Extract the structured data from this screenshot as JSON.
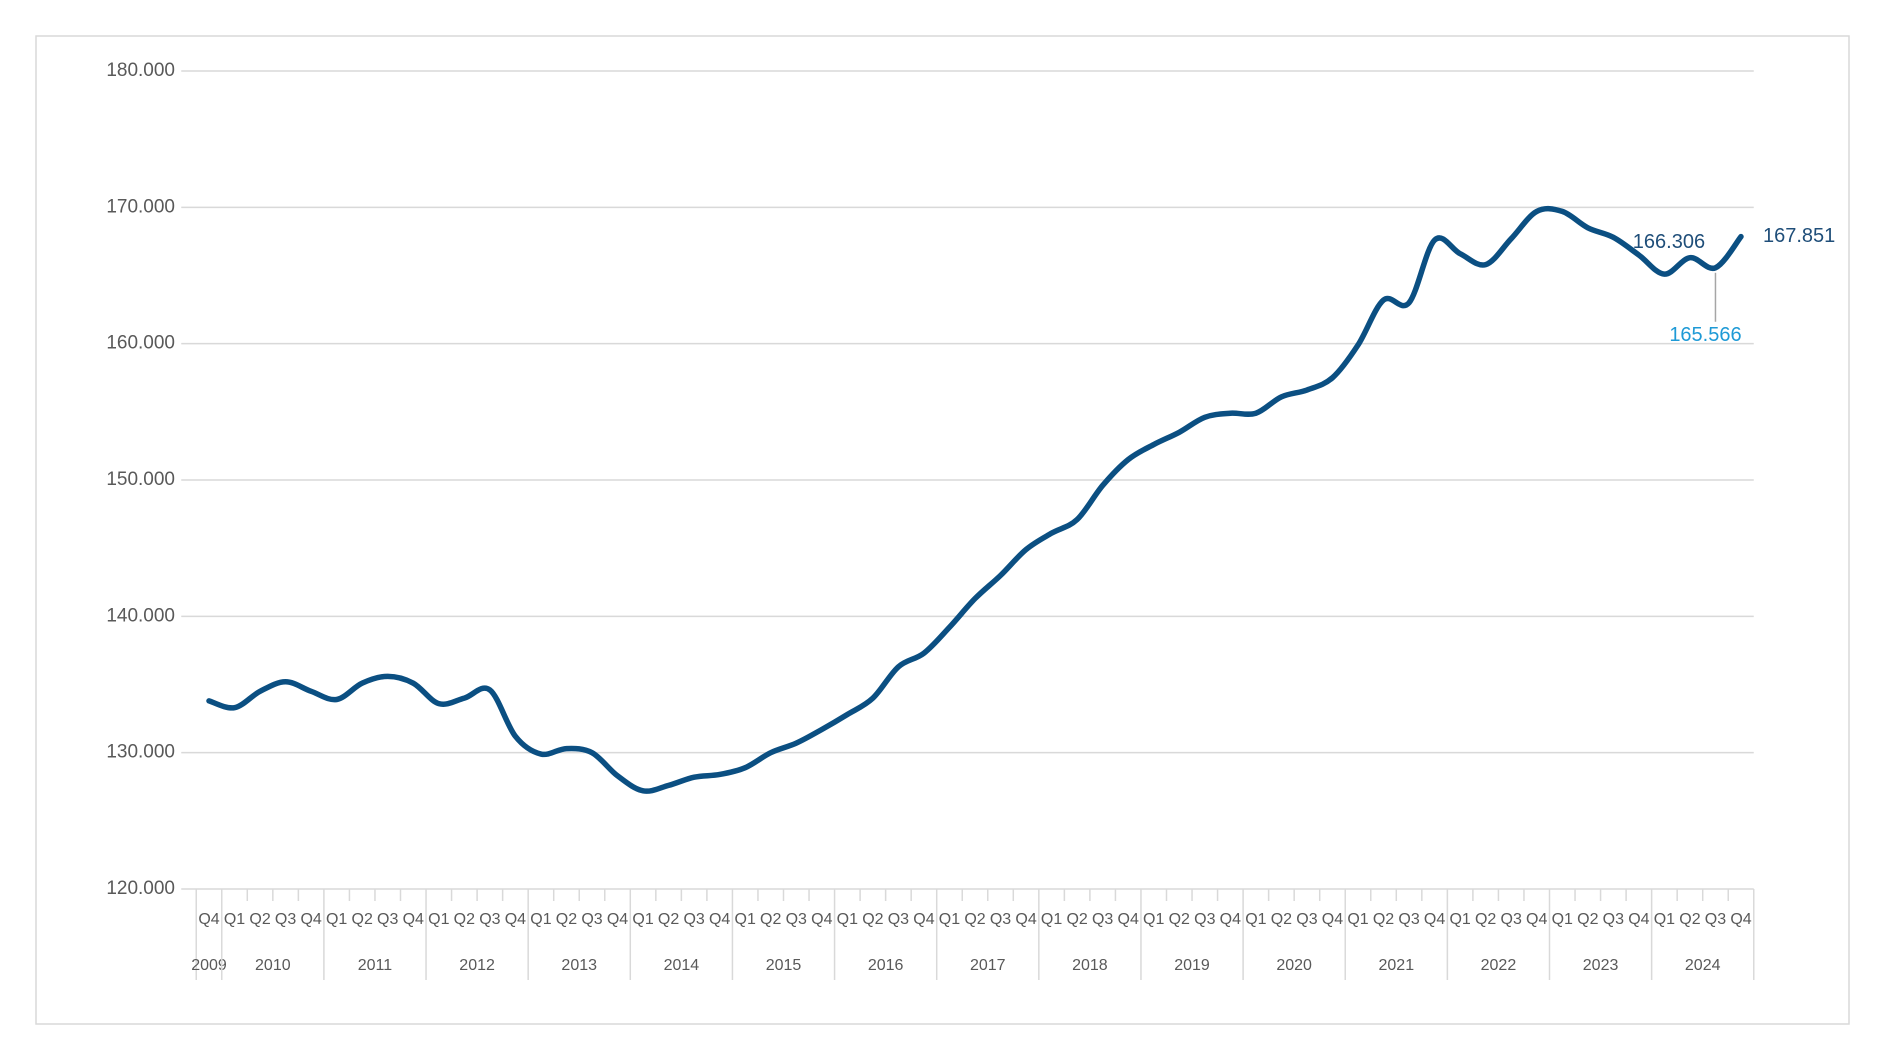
{
  "chart_data": {
    "type": "line",
    "groups": [
      {
        "name": "2009",
        "categories": [
          "Q4"
        ]
      },
      {
        "name": "2010",
        "categories": [
          "Q1",
          "Q2",
          "Q3",
          "Q4"
        ]
      },
      {
        "name": "2011",
        "categories": [
          "Q1",
          "Q2",
          "Q3",
          "Q4"
        ]
      },
      {
        "name": "2012",
        "categories": [
          "Q1",
          "Q2",
          "Q3",
          "Q4"
        ]
      },
      {
        "name": "2013",
        "categories": [
          "Q1",
          "Q2",
          "Q3",
          "Q4"
        ]
      },
      {
        "name": "2014",
        "categories": [
          "Q1",
          "Q2",
          "Q3",
          "Q4"
        ]
      },
      {
        "name": "2015",
        "categories": [
          "Q1",
          "Q2",
          "Q3",
          "Q4"
        ]
      },
      {
        "name": "2016",
        "categories": [
          "Q1",
          "Q2",
          "Q3",
          "Q4"
        ]
      },
      {
        "name": "2017",
        "categories": [
          "Q1",
          "Q2",
          "Q3",
          "Q4"
        ]
      },
      {
        "name": "2018",
        "categories": [
          "Q1",
          "Q2",
          "Q3",
          "Q4"
        ]
      },
      {
        "name": "2019",
        "categories": [
          "Q1",
          "Q2",
          "Q3",
          "Q4"
        ]
      },
      {
        "name": "2020",
        "categories": [
          "Q1",
          "Q2",
          "Q3",
          "Q4"
        ]
      },
      {
        "name": "2021",
        "categories": [
          "Q1",
          "Q2",
          "Q3",
          "Q4"
        ]
      },
      {
        "name": "2022",
        "categories": [
          "Q1",
          "Q2",
          "Q3",
          "Q4"
        ]
      },
      {
        "name": "2023",
        "categories": [
          "Q1",
          "Q2",
          "Q3",
          "Q4"
        ]
      },
      {
        "name": "2024",
        "categories": [
          "Q1",
          "Q2",
          "Q3",
          "Q4"
        ]
      }
    ],
    "values": [
      133800,
      133300,
      134500,
      135200,
      134500,
      133900,
      135100,
      135600,
      135100,
      133600,
      134000,
      134600,
      131200,
      129900,
      130300,
      130000,
      128300,
      127200,
      127600,
      128200,
      128400,
      128900,
      130000,
      130700,
      131700,
      132800,
      134000,
      136300,
      137300,
      139200,
      141300,
      143000,
      144900,
      146100,
      147100,
      149600,
      151500,
      152600,
      153500,
      154600,
      154900,
      154900,
      156100,
      156600,
      157500,
      159900,
      163200,
      163000,
      167600,
      166600,
      165800,
      167700,
      169700,
      169700,
      168500,
      167800,
      166500,
      165100,
      166306,
      165566,
      167851
    ],
    "value_labels": [
      null,
      null,
      null,
      null,
      null,
      null,
      null,
      null,
      null,
      null,
      null,
      null,
      null,
      null,
      null,
      null,
      null,
      null,
      null,
      null,
      null,
      null,
      null,
      null,
      null,
      null,
      null,
      null,
      null,
      null,
      null,
      null,
      null,
      null,
      null,
      null,
      null,
      null,
      null,
      null,
      null,
      null,
      null,
      null,
      null,
      null,
      null,
      null,
      null,
      null,
      null,
      null,
      null,
      null,
      null,
      null,
      null,
      null,
      "166.306",
      "165.566",
      "167.851"
    ],
    "value_label_colors": [
      null,
      null,
      null,
      null,
      null,
      null,
      null,
      null,
      null,
      null,
      null,
      null,
      null,
      null,
      null,
      null,
      null,
      null,
      null,
      null,
      null,
      null,
      null,
      null,
      null,
      null,
      null,
      null,
      null,
      null,
      null,
      null,
      null,
      null,
      null,
      null,
      null,
      null,
      null,
      null,
      null,
      null,
      null,
      null,
      null,
      null,
      null,
      null,
      null,
      null,
      null,
      null,
      null,
      null,
      null,
      null,
      null,
      null,
      "#1f4e79",
      "#1e9ad6",
      "#1f4e79"
    ],
    "color": "#0b4f82",
    "ylim": [
      120000,
      180000
    ],
    "yticks": [
      {
        "value": 120000,
        "label": "120.000"
      },
      {
        "value": 130000,
        "label": "130.000"
      },
      {
        "value": 140000,
        "label": "140.000"
      },
      {
        "value": 150000,
        "label": "150.000"
      },
      {
        "value": 160000,
        "label": "160.000"
      },
      {
        "value": 170000,
        "label": "170.000"
      },
      {
        "value": 180000,
        "label": "180.000"
      }
    ],
    "grid": true
  }
}
